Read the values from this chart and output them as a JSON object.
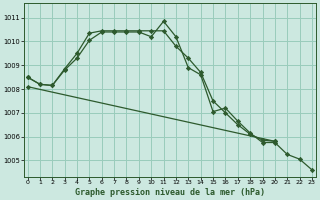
{
  "title": "Graphe pression niveau de la mer (hPa)",
  "background_color": "#cce8e0",
  "grid_color": "#99ccbb",
  "line_color": "#2d5a2d",
  "x_ticks": [
    0,
    1,
    2,
    3,
    4,
    5,
    6,
    7,
    8,
    9,
    10,
    11,
    12,
    13,
    14,
    15,
    16,
    17,
    18,
    19,
    20,
    21,
    22,
    23
  ],
  "y_ticks": [
    1005,
    1006,
    1007,
    1008,
    1009,
    1010,
    1011
  ],
  "ylim": [
    1004.3,
    1011.6
  ],
  "xlim": [
    -0.3,
    23.3
  ],
  "series": [
    {
      "x": [
        0,
        1,
        2,
        3,
        4,
        5,
        6,
        7,
        8,
        9,
        10,
        11,
        12,
        13,
        14,
        15,
        16,
        17,
        18,
        19,
        20,
        21,
        22,
        23
      ],
      "y": [
        1008.5,
        1008.2,
        1008.15,
        1008.8,
        1009.3,
        1010.05,
        1010.4,
        1010.4,
        1010.4,
        1010.4,
        1010.2,
        1010.85,
        1010.2,
        1008.9,
        1008.6,
        1007.05,
        1007.2,
        1006.65,
        1006.15,
        1005.75,
        1005.75,
        1005.25,
        1005.05,
        1004.6
      ]
    },
    {
      "x": [
        0,
        1,
        2,
        3,
        4,
        5,
        6,
        7,
        8,
        9,
        10,
        11,
        12,
        13,
        14,
        15,
        16,
        17,
        18,
        19,
        20
      ],
      "y": [
        1008.5,
        1008.2,
        1008.15,
        1008.85,
        1009.5,
        1010.35,
        1010.45,
        1010.45,
        1010.45,
        1010.45,
        1010.45,
        1010.45,
        1009.8,
        1009.3,
        1008.7,
        1007.5,
        1007.0,
        1006.5,
        1006.1,
        1005.85,
        1005.8
      ]
    },
    {
      "x": [
        0,
        20
      ],
      "y": [
        1008.1,
        1005.8
      ]
    }
  ]
}
